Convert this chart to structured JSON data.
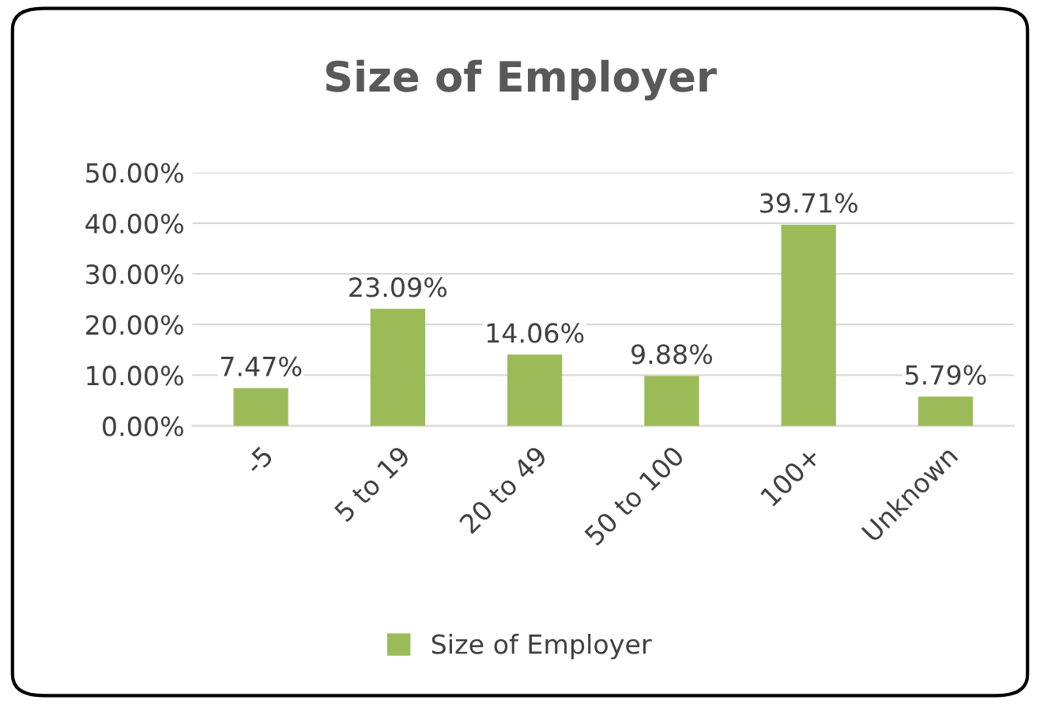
{
  "chart_data": {
    "type": "bar",
    "title": "Size of Employer",
    "categories": [
      "-5",
      "5 to 19",
      "20 to 49",
      "50 to 100",
      "100+",
      "Unknown"
    ],
    "series": [
      {
        "name": "Size of Employer",
        "color": "#9bbb59",
        "values": [
          7.47,
          23.09,
          14.06,
          9.88,
          39.71,
          5.79
        ],
        "value_labels": [
          "7.47%",
          "23.09%",
          "14.06%",
          "9.88%",
          "39.71%",
          "5.79%"
        ]
      }
    ],
    "ylim": [
      0,
      50
    ],
    "yticks": [
      {
        "value": 0,
        "label": "0.00%"
      },
      {
        "value": 10,
        "label": "10.00%"
      },
      {
        "value": 20,
        "label": "20.00%"
      },
      {
        "value": 30,
        "label": "30.00%"
      },
      {
        "value": 40,
        "label": "40.00%"
      },
      {
        "value": 50,
        "label": "50.00%"
      }
    ],
    "grid": "y",
    "legend": "bottom"
  }
}
